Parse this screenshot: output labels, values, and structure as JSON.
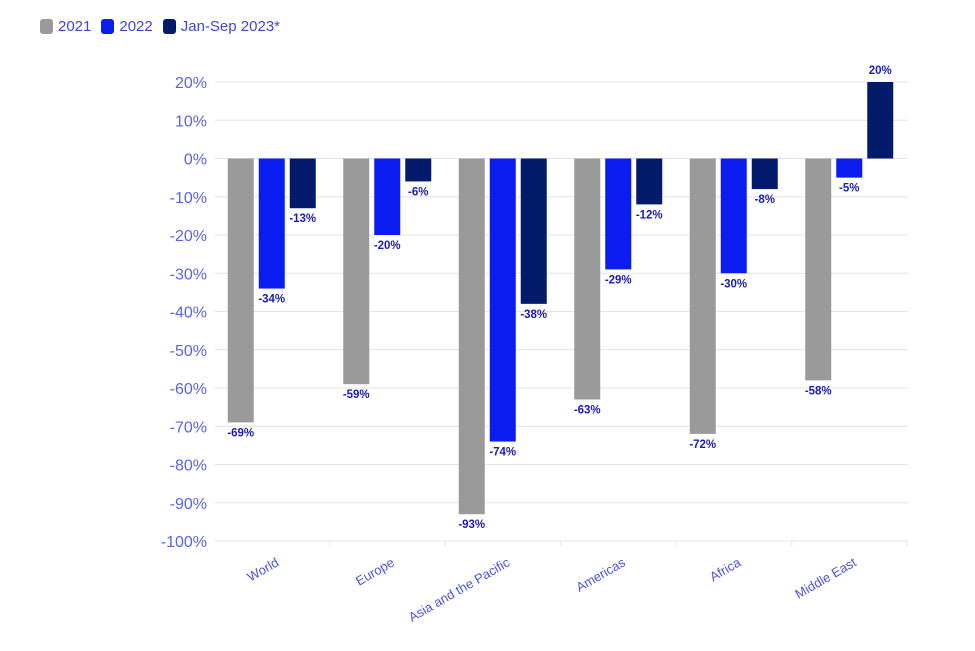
{
  "chart_data": {
    "type": "bar",
    "categories": [
      "World",
      "Europe",
      "Asia and the Pacific",
      "Americas",
      "Africa",
      "Middle East"
    ],
    "series": [
      {
        "name": "2021",
        "color": "#9a9a9a",
        "values": [
          -69,
          -59,
          -93,
          -63,
          -72,
          -58
        ]
      },
      {
        "name": "2022",
        "color": "#0a1cf0",
        "values": [
          -34,
          -20,
          -74,
          -29,
          -30,
          -5
        ]
      },
      {
        "name": "Jan-Sep 2023*",
        "color": "#041a6a",
        "values": [
          -13,
          -6,
          -38,
          -12,
          -8,
          20
        ]
      }
    ],
    "value_labels": [
      [
        "-69%",
        "-59%",
        "-93%",
        "-63%",
        "-72%",
        "-58%"
      ],
      [
        "-34%",
        "-20%",
        "-74%",
        "-29%",
        "-30%",
        "-5%"
      ],
      [
        "-13%",
        "-6%",
        "-38%",
        "-12%",
        "-8%",
        "20%"
      ]
    ],
    "yticks": [
      20,
      10,
      0,
      -10,
      -20,
      -30,
      -40,
      -50,
      -60,
      -70,
      -80,
      -90,
      -100
    ],
    "ytick_labels": [
      "20%",
      "10%",
      "0%",
      "-10%",
      "-20%",
      "-30%",
      "-40%",
      "-50%",
      "-60%",
      "-70%",
      "-80%",
      "-90%",
      "-100%"
    ],
    "ylim": [
      -100,
      20
    ],
    "grid": true,
    "legend": "top-left"
  }
}
